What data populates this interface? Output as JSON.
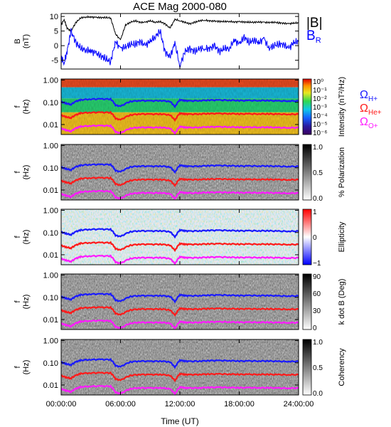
{
  "title": "ACE Mag 2000-080",
  "x_axis": {
    "label": "Time (UT)",
    "ticks": [
      "00:00:00",
      "06:00:00",
      "12:00:00",
      "18:00:00",
      "24:00:00"
    ],
    "range_hours": [
      0,
      24
    ]
  },
  "legend_top": {
    "b_mag": "|B|",
    "b_r_main": "B",
    "b_r_sub": "R"
  },
  "legend_gyro": [
    {
      "main": "Ω",
      "sub": "H+",
      "color": "#1a1aff"
    },
    {
      "main": "Ω",
      "sub": "He+",
      "color": "#ff1a1a"
    },
    {
      "main": "Ω",
      "sub": "O+",
      "color": "#ff1aff"
    }
  ],
  "colors": {
    "mag": "#000000",
    "br": "#0000ff",
    "h_plus": "#1a1aff",
    "he_plus": "#ff1a1a",
    "o_plus": "#ff1aff"
  },
  "chart_data": [
    {
      "type": "line",
      "panel": "field",
      "ylabel": "B (nT)",
      "ylabel_main": "B",
      "ylabel_unit": "(nT)",
      "ylim": [
        -8,
        11
      ],
      "yticks": [
        "10",
        "5",
        "0",
        "-5"
      ],
      "ytick_values": [
        10,
        5,
        0,
        -5
      ],
      "series": [
        {
          "name": "|B|",
          "color": "#000000",
          "x": [
            0,
            0.3,
            0.6,
            1,
            1.5,
            2,
            2.5,
            3,
            3.5,
            4,
            4.5,
            5,
            5.5,
            6,
            6.5,
            7,
            7.5,
            8,
            8.5,
            9,
            9.5,
            10,
            10.5,
            11,
            11.5,
            12,
            12.5,
            13,
            13.5,
            14,
            14.5,
            15,
            15.5,
            16,
            16.5,
            17,
            17.5,
            18,
            18.5,
            19,
            19.5,
            20,
            20.5,
            21,
            21.5,
            22,
            22.5,
            23,
            23.5,
            24
          ],
          "y": [
            7,
            9,
            6,
            5,
            8,
            9.5,
            9.8,
            9.8,
            9.7,
            9.6,
            9.6,
            9.5,
            4,
            2,
            7,
            8,
            8.5,
            8,
            8,
            8.5,
            8,
            8.2,
            7.5,
            6,
            9,
            8.5,
            8,
            7.5,
            8,
            8.5,
            8.7,
            8.5,
            8.4,
            8.3,
            8.2,
            8.3,
            8.1,
            8.2,
            8.1,
            8,
            8,
            8.1,
            8,
            7.9,
            8,
            7.8,
            7.7,
            7.5,
            7.7,
            7.8
          ]
        },
        {
          "name": "B",
          "color": "#0000ff",
          "x": [
            0,
            0.3,
            0.6,
            1,
            1.5,
            2,
            2.5,
            3,
            3.5,
            4,
            4.5,
            5,
            5.5,
            6,
            6.5,
            7,
            7.5,
            8,
            8.5,
            9,
            9.5,
            10,
            10.5,
            11,
            11.5,
            12,
            12.5,
            13,
            13.5,
            14,
            14.5,
            15,
            15.5,
            16,
            16.5,
            17,
            17.5,
            18,
            18.5,
            19,
            19.5,
            20,
            20.5,
            21,
            21.5,
            22,
            22.5,
            23,
            23.5,
            24
          ],
          "y": [
            -4,
            -6,
            -2,
            5,
            1,
            -1,
            -1.5,
            -1.8,
            -2.5,
            -3.5,
            -4.5,
            -5.5,
            1.5,
            -1,
            -0.5,
            0.5,
            0.5,
            1.5,
            0,
            1.5,
            3,
            5,
            -2,
            -4,
            1,
            -7,
            -2,
            -1,
            -2,
            -1,
            -1,
            -1,
            0,
            -2,
            -1,
            -1,
            2,
            0.5,
            3,
            1,
            2,
            1,
            2.5,
            -1,
            0,
            0.5,
            0.5,
            -1,
            1,
            1.5
          ]
        }
      ]
    },
    {
      "type": "heatmap",
      "panel": "intensity",
      "ylabel": "f (Hz)",
      "ylabel_main": "f",
      "ylabel_unit": "(Hz)",
      "yticks": [
        "1.00",
        "0.10",
        "0.01"
      ],
      "ytick_values": [
        1,
        0.1,
        0.01
      ],
      "colorbar": {
        "label": "Intensity (nT²/Hz)",
        "ticks": [
          "10⁰",
          "10⁻¹",
          "10⁻²",
          "10⁻³",
          "10⁻⁴",
          "10⁻⁵",
          "10⁻⁶"
        ],
        "range": [
          -6,
          0
        ],
        "log": true
      }
    },
    {
      "type": "heatmap",
      "panel": "polarization",
      "ylabel": "f (Hz)",
      "ylabel_main": "f",
      "ylabel_unit": "(Hz)",
      "yticks": [
        "1.00",
        "0.10",
        "0.01"
      ],
      "ytick_values": [
        1,
        0.1,
        0.01
      ],
      "colorbar": {
        "label": "% Polarization",
        "ticks": [
          "1.0",
          "0.5",
          "0.0"
        ],
        "range": [
          0,
          1
        ]
      }
    },
    {
      "type": "heatmap",
      "panel": "ellipticity",
      "ylabel": "f (Hz)",
      "ylabel_main": "f",
      "ylabel_unit": "(Hz)",
      "yticks": [
        "1.00",
        "0.10",
        "0.01"
      ],
      "ytick_values": [
        1,
        0.1,
        0.01
      ],
      "colorbar": {
        "label": "Ellipticity",
        "ticks": [
          "1",
          "0",
          "−1"
        ],
        "range": [
          -1,
          1
        ]
      }
    },
    {
      "type": "heatmap",
      "panel": "kdotb",
      "ylabel": "f (Hz)",
      "ylabel_main": "f",
      "ylabel_unit": "(Hz)",
      "yticks": [
        "1.00",
        "0.10",
        "0.01"
      ],
      "ytick_values": [
        1,
        0.1,
        0.01
      ],
      "colorbar": {
        "label": "k dot B (Deg)",
        "ticks": [
          "90",
          "60",
          "30",
          "0"
        ],
        "range": [
          0,
          90
        ]
      }
    },
    {
      "type": "heatmap",
      "panel": "coherency",
      "ylabel": "f (Hz)",
      "ylabel_main": "f",
      "ylabel_unit": "(Hz)",
      "yticks": [
        "1.00",
        "0.10",
        "0.01"
      ],
      "ytick_values": [
        1,
        0.1,
        0.01
      ],
      "colorbar": {
        "label": "Coherency",
        "ticks": [
          "1.0",
          "0.5",
          "0.0"
        ],
        "range": [
          0,
          1
        ]
      }
    }
  ],
  "gyro_lines": [
    {
      "name": "ΩH+",
      "color": "#1a1aff",
      "x": [
        0,
        0.5,
        1,
        1.5,
        2,
        3,
        4,
        5,
        5.5,
        6,
        7,
        8,
        9,
        10,
        11,
        11.5,
        12,
        12.5,
        13,
        14,
        15,
        16,
        17,
        18,
        19,
        20,
        21,
        22,
        23,
        24
      ],
      "y": [
        0.105,
        0.09,
        0.08,
        0.11,
        0.13,
        0.14,
        0.14,
        0.14,
        0.075,
        0.065,
        0.11,
        0.12,
        0.115,
        0.12,
        0.11,
        0.06,
        0.13,
        0.12,
        0.115,
        0.12,
        0.125,
        0.125,
        0.125,
        0.12,
        0.12,
        0.12,
        0.12,
        0.115,
        0.115,
        0.115
      ]
    },
    {
      "name": "ΩHe+",
      "color": "#ff1a1a",
      "x": [
        0,
        0.5,
        1,
        1.5,
        2,
        3,
        4,
        5,
        5.5,
        6,
        7,
        8,
        9,
        10,
        11,
        11.5,
        12,
        12.5,
        13,
        14,
        15,
        16,
        17,
        18,
        19,
        20,
        21,
        22,
        23,
        24
      ],
      "y": [
        0.026,
        0.022,
        0.02,
        0.027,
        0.033,
        0.035,
        0.035,
        0.035,
        0.019,
        0.016,
        0.027,
        0.03,
        0.029,
        0.03,
        0.027,
        0.015,
        0.032,
        0.03,
        0.029,
        0.03,
        0.031,
        0.031,
        0.031,
        0.03,
        0.03,
        0.03,
        0.03,
        0.029,
        0.029,
        0.029
      ]
    },
    {
      "name": "ΩO+",
      "color": "#ff1aff",
      "x": [
        0,
        0.5,
        1,
        1.5,
        2,
        3,
        4,
        5,
        5.5,
        6,
        7,
        8,
        9,
        10,
        11,
        11.5,
        12,
        12.5,
        13,
        14,
        15,
        16,
        17,
        18,
        19,
        20,
        21,
        22,
        23,
        24
      ],
      "y": [
        0.0066,
        0.0056,
        0.005,
        0.0068,
        0.0082,
        0.0088,
        0.0088,
        0.0088,
        0.0047,
        0.004,
        0.0068,
        0.0075,
        0.0072,
        0.0075,
        0.0068,
        0.0038,
        0.0081,
        0.0075,
        0.0072,
        0.0075,
        0.0078,
        0.0078,
        0.0078,
        0.0075,
        0.0075,
        0.0075,
        0.0075,
        0.0072,
        0.0072,
        0.0072
      ]
    }
  ]
}
